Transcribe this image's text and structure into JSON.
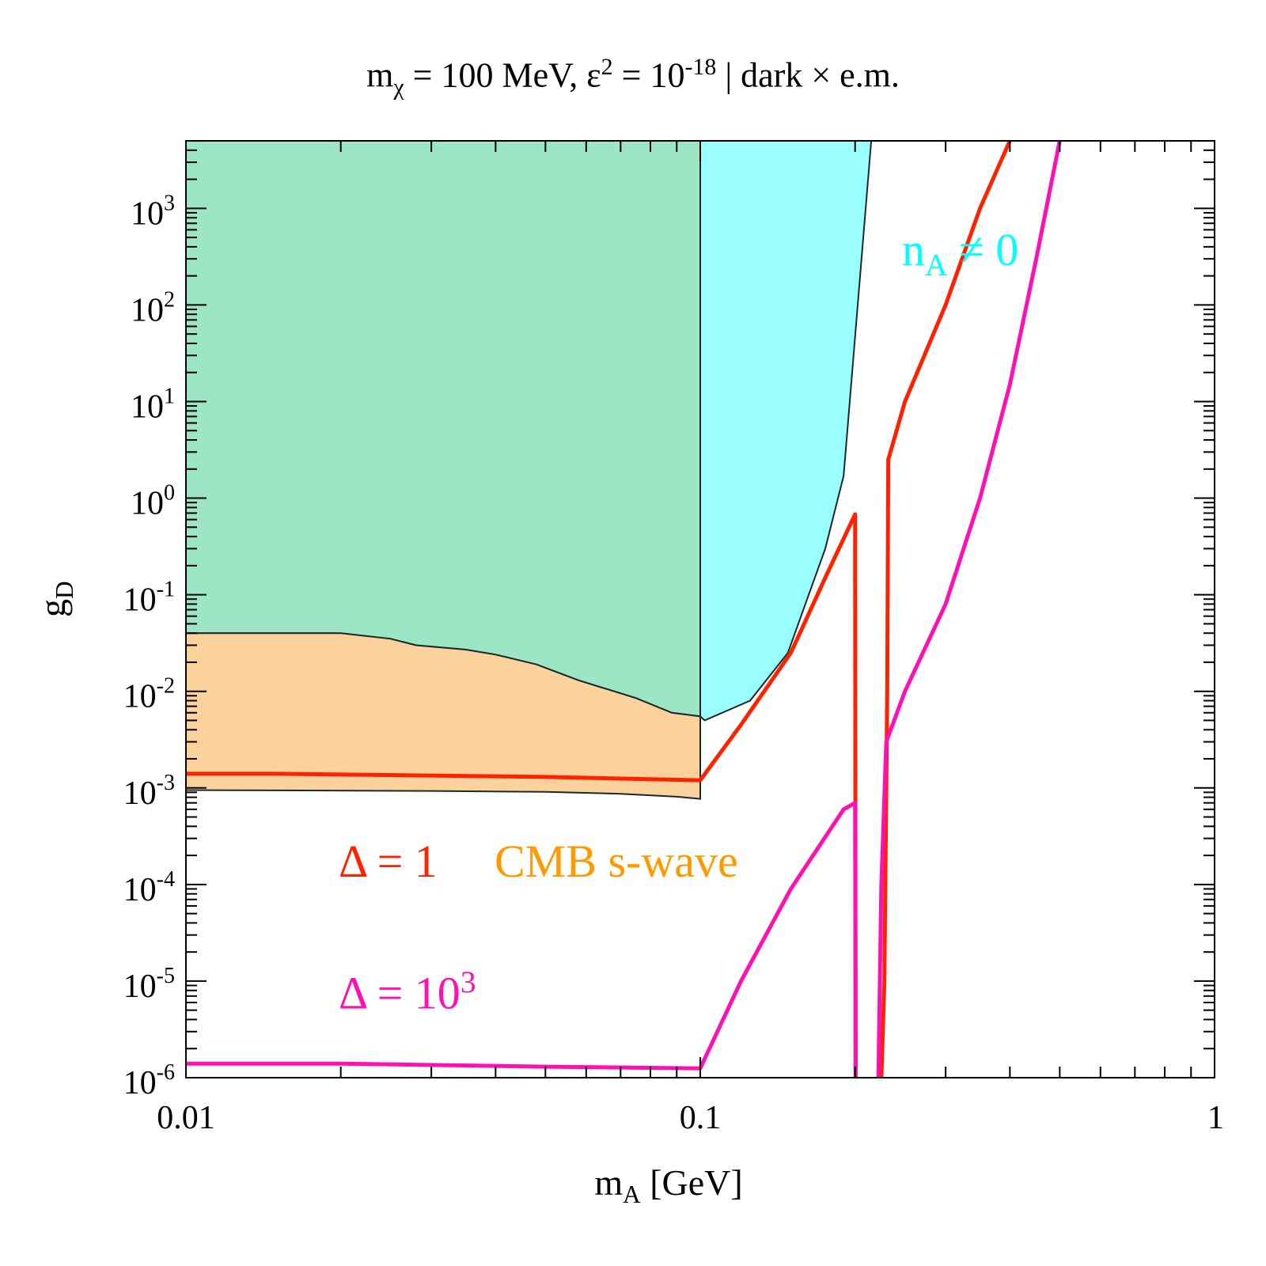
{
  "chart_data": {
    "type": "area",
    "title_parts": {
      "m": "m",
      "chi": "χ",
      "eq1": " = 100 MeV, ε",
      "two": "2",
      "eq2": " = 10",
      "exp": "-18",
      "rest": " | dark × e.m."
    },
    "xlabel_parts": {
      "m": "m",
      "sub": "A",
      "rest": " [GeV]"
    },
    "ylabel_parts": {
      "g": "g",
      "sub": "D"
    },
    "xscale": "log",
    "yscale": "log",
    "xlim": [
      0.01,
      1
    ],
    "ylim": [
      1e-06,
      5000
    ],
    "x_ticks": [
      {
        "value": 0.01,
        "label": "0.01"
      },
      {
        "value": 0.1,
        "label": "0.1"
      },
      {
        "value": 1,
        "label": "1"
      }
    ],
    "y_ticks": [
      {
        "value": 1e-06,
        "base": "10",
        "exp": "-6"
      },
      {
        "value": 1e-05,
        "base": "10",
        "exp": "-5"
      },
      {
        "value": 0.0001,
        "base": "10",
        "exp": "-4"
      },
      {
        "value": 0.001,
        "base": "10",
        "exp": "-3"
      },
      {
        "value": 0.01,
        "base": "10",
        "exp": "-2"
      },
      {
        "value": 0.1,
        "base": "10",
        "exp": "-1"
      },
      {
        "value": 1,
        "base": "10",
        "exp": "0"
      },
      {
        "value": 10,
        "base": "10",
        "exp": "1"
      },
      {
        "value": 100,
        "base": "10",
        "exp": "2"
      },
      {
        "value": 1000,
        "base": "10",
        "exp": "3"
      }
    ],
    "regions": [
      {
        "name": "green-region",
        "color": "#9ce6c5",
        "points": [
          [
            0.01,
            5000
          ],
          [
            0.1,
            5000
          ],
          [
            0.1,
            0.0055
          ],
          [
            0.088,
            0.006
          ],
          [
            0.075,
            0.0085
          ],
          [
            0.058,
            0.013
          ],
          [
            0.048,
            0.019
          ],
          [
            0.04,
            0.024
          ],
          [
            0.035,
            0.027
          ],
          [
            0.028,
            0.03
          ],
          [
            0.025,
            0.035
          ],
          [
            0.02,
            0.04
          ],
          [
            0.01,
            0.04
          ]
        ]
      },
      {
        "name": "cyan-region",
        "color": "#99ffff",
        "points": [
          [
            0.1,
            5000
          ],
          [
            0.215,
            5000
          ],
          [
            0.19,
            1.7
          ],
          [
            0.175,
            0.3
          ],
          [
            0.148,
            0.025
          ],
          [
            0.125,
            0.008
          ],
          [
            0.102,
            0.005
          ],
          [
            0.1,
            0.0055
          ]
        ]
      },
      {
        "name": "orange-region",
        "color": "#fbd29c",
        "points": [
          [
            0.01,
            0.04
          ],
          [
            0.02,
            0.04
          ],
          [
            0.025,
            0.035
          ],
          [
            0.028,
            0.03
          ],
          [
            0.035,
            0.027
          ],
          [
            0.04,
            0.024
          ],
          [
            0.048,
            0.019
          ],
          [
            0.058,
            0.013
          ],
          [
            0.075,
            0.0085
          ],
          [
            0.088,
            0.006
          ],
          [
            0.1,
            0.0055
          ],
          [
            0.1,
            0.00077
          ],
          [
            0.09,
            0.00081
          ],
          [
            0.07,
            0.00087
          ],
          [
            0.05,
            0.00091
          ],
          [
            0.03,
            0.00093
          ],
          [
            0.01,
            0.00095
          ]
        ]
      }
    ],
    "series": [
      {
        "name": "Δ = 1",
        "color": "#ff2200",
        "segments": [
          [
            [
              0.01,
              0.0014
            ],
            [
              0.015,
              0.0014
            ],
            [
              0.05,
              0.0013
            ],
            [
              0.1,
              0.0012
            ],
            [
              0.12,
              0.0045
            ],
            [
              0.15,
              0.025
            ],
            [
              0.175,
              0.15
            ],
            [
              0.2,
              0.68
            ],
            [
              0.2005,
              1e-06
            ]
          ],
          [
            [
              0.225,
              1e-06
            ],
            [
              0.228,
              1e-05
            ],
            [
              0.231,
              0.01
            ],
            [
              0.232,
              2.5
            ],
            [
              0.25,
              10
            ],
            [
              0.3,
              100
            ],
            [
              0.35,
              1000
            ],
            [
              0.4,
              5000
            ]
          ]
        ]
      },
      {
        "name": "Δ = 10³",
        "color": "#ff10b4",
        "segments": [
          [
            [
              0.01,
              1.4e-06
            ],
            [
              0.02,
              1.4e-06
            ],
            [
              0.05,
              1.3e-06
            ],
            [
              0.1,
              1.25e-06
            ],
            [
              0.12,
              1e-05
            ],
            [
              0.15,
              9e-05
            ],
            [
              0.19,
              0.0006
            ],
            [
              0.2,
              0.0007
            ],
            [
              0.2005,
              1e-06
            ]
          ],
          [
            [
              0.222,
              1e-06
            ],
            [
              0.225,
              0.0001
            ],
            [
              0.23,
              0.003
            ],
            [
              0.25,
              0.01
            ],
            [
              0.3,
              0.08
            ],
            [
              0.35,
              1
            ],
            [
              0.4,
              15
            ],
            [
              0.45,
              300
            ],
            [
              0.5,
              5000
            ]
          ]
        ]
      }
    ],
    "annotations": [
      {
        "name": "na-label",
        "text_main": "n",
        "text_sub": "A",
        "text_rest": " ≠ 0",
        "color": "#00ffff"
      },
      {
        "name": "delta1-label",
        "text": "Δ = 1",
        "color": "#ff2200"
      },
      {
        "name": "cmb-label",
        "text": "CMB s-wave",
        "color": "#ff9900"
      },
      {
        "name": "delta1000-label",
        "text_main": "Δ = 10",
        "text_sup": "3",
        "color": "#ff10b4"
      }
    ]
  }
}
